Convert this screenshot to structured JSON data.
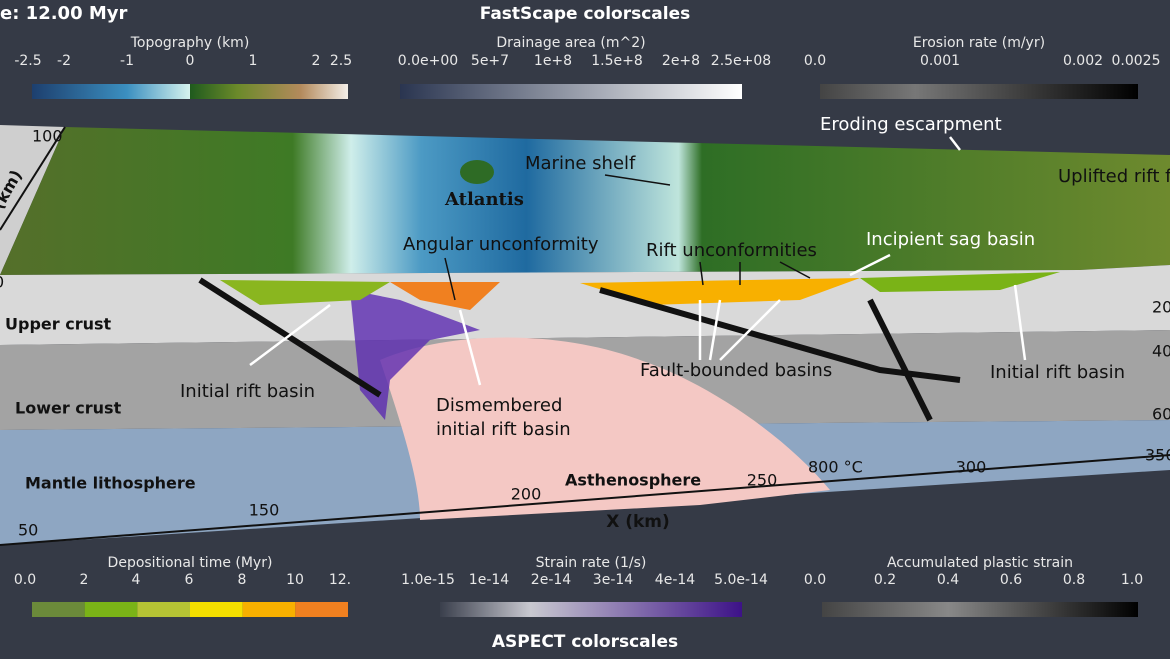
{
  "header": {
    "time": "e: 12.00 Myr",
    "top_title": "FastScape colorscales",
    "bottom_title": "ASPECT colorscales"
  },
  "colorbars": [
    {
      "title": "Topography (km)",
      "ticks": [
        "-2.5",
        "-2",
        "-1",
        "0",
        "1",
        "2",
        "2.5"
      ]
    },
    {
      "title": "Drainage area (m^2)",
      "ticks": [
        "0.0e+00",
        "5e+7",
        "1e+8",
        "1.5e+8",
        "2e+8",
        "2.5e+08"
      ]
    },
    {
      "title": "Erosion rate (m/yr)",
      "ticks": [
        "0.0",
        "0.001",
        "0.002",
        "0.0025"
      ]
    },
    {
      "title": "Depositional time (Myr)",
      "ticks": [
        "0.0",
        "2",
        "4",
        "6",
        "8",
        "10",
        "12."
      ]
    },
    {
      "title": "Strain rate (1/s)",
      "ticks": [
        "1.0e-15",
        "1e-14",
        "2e-14",
        "3e-14",
        "4e-14",
        "5.0e-14"
      ]
    },
    {
      "title": "Accumulated plastic strain",
      "ticks": [
        "0.0",
        "0.2",
        "0.4",
        "0.6",
        "0.8",
        "1.0"
      ]
    }
  ],
  "annotations": {
    "eroding_escarpment": "Eroding escarpment",
    "uplifted": "Uplifted rift f",
    "marine_shelf": "Marine shelf",
    "atlantis": "Atlantis",
    "angular": "Angular unconformity",
    "rift_unconf": "Rift unconformities",
    "sag": "Incipient sag basin",
    "upper_crust": "Upper crust",
    "lower_crust": "Lower crust",
    "mantle": "Mantle lithosphere",
    "asthenosphere": "Asthenosphere",
    "initial_left": "Initial rift basin",
    "initial_right": "Initial rift basin",
    "dismembered": [
      "Dismembered",
      "initial rift basin"
    ],
    "fault_bounded": "Fault-bounded basins",
    "isotherm": "800 °C"
  },
  "axes": {
    "y_left": [
      "100",
      "0",
      "50"
    ],
    "y_left_label": "(km)",
    "x_ticks": [
      "150",
      "200",
      "250",
      "300",
      "350"
    ],
    "x_label": "X (km)",
    "y_right": [
      "20",
      "40",
      "60"
    ]
  }
}
